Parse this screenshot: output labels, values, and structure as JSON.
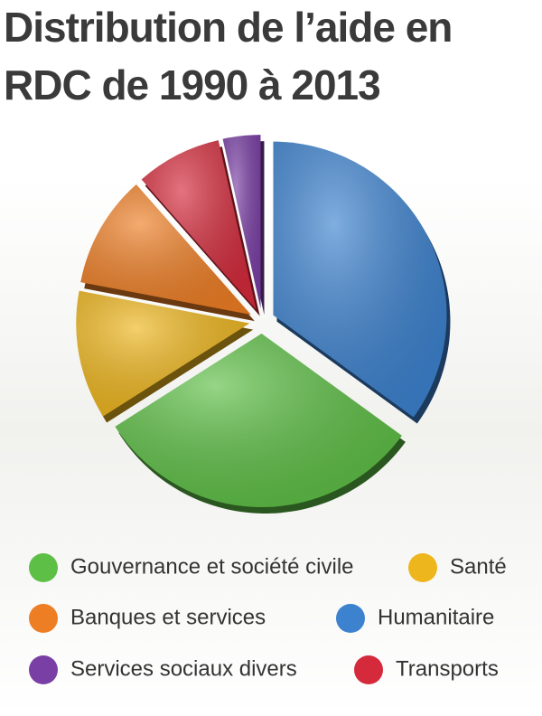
{
  "chart_data": {
    "type": "pie",
    "title": [
      "Distribution de l’aide en",
      "RDC de 1990 à 2013"
    ],
    "categories": [
      "Humanitaire",
      "Gouvernance et société civile",
      "Santé",
      "Banques et services",
      "Transports",
      "Services sociaux divers"
    ],
    "values": [
      35,
      31,
      12,
      10.5,
      8,
      3.5
    ],
    "colors": [
      "#3c82cf",
      "#5dbf45",
      "#eeb61d",
      "#ee7e24",
      "#d42a3b",
      "#7a3fa5"
    ]
  }
}
